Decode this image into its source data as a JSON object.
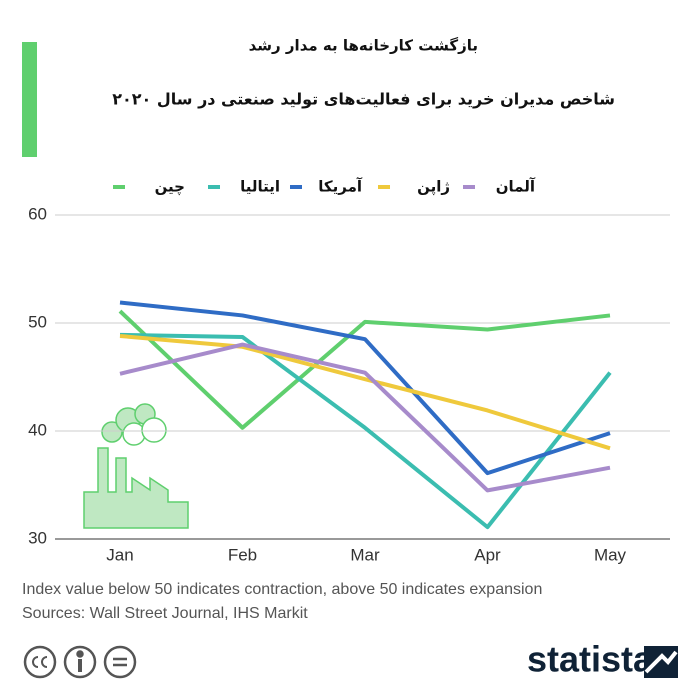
{
  "chart_data": {
    "type": "line",
    "title": "بازگشت کارخانه‌ها به مدار رشد",
    "subtitle": "شاخص مدیران خرید برای فعالیت‌های تولید صنعتی در سال ۲۰۲۰",
    "categories": [
      "Jan",
      "Feb",
      "Mar",
      "Apr",
      "May"
    ],
    "series": [
      {
        "name": "چین",
        "color": "#5fcf6e",
        "values": [
          51.1,
          40.3,
          50.1,
          49.4,
          50.7
        ]
      },
      {
        "name": "ایتالیا",
        "color": "#3bbdb0",
        "values": [
          48.9,
          48.7,
          40.3,
          31.1,
          45.4
        ]
      },
      {
        "name": "آمریکا",
        "color": "#2f6cc5",
        "values": [
          51.9,
          50.7,
          48.5,
          36.1,
          39.8
        ]
      },
      {
        "name": "ژاپن",
        "color": "#efc93c",
        "values": [
          48.8,
          47.8,
          44.8,
          41.9,
          38.4
        ]
      },
      {
        "name": "آلمان",
        "color": "#a78bcb",
        "values": [
          45.3,
          48.0,
          45.4,
          34.5,
          36.6
        ]
      }
    ],
    "ylim": [
      30,
      60
    ],
    "yticks": [
      30,
      40,
      50,
      60
    ],
    "grid": true,
    "note": "Index value below 50 indicates contraction, above 50 indicates expansion",
    "source": "Sources: Wall Street Journal, IHS Markit",
    "logo": "statista"
  }
}
